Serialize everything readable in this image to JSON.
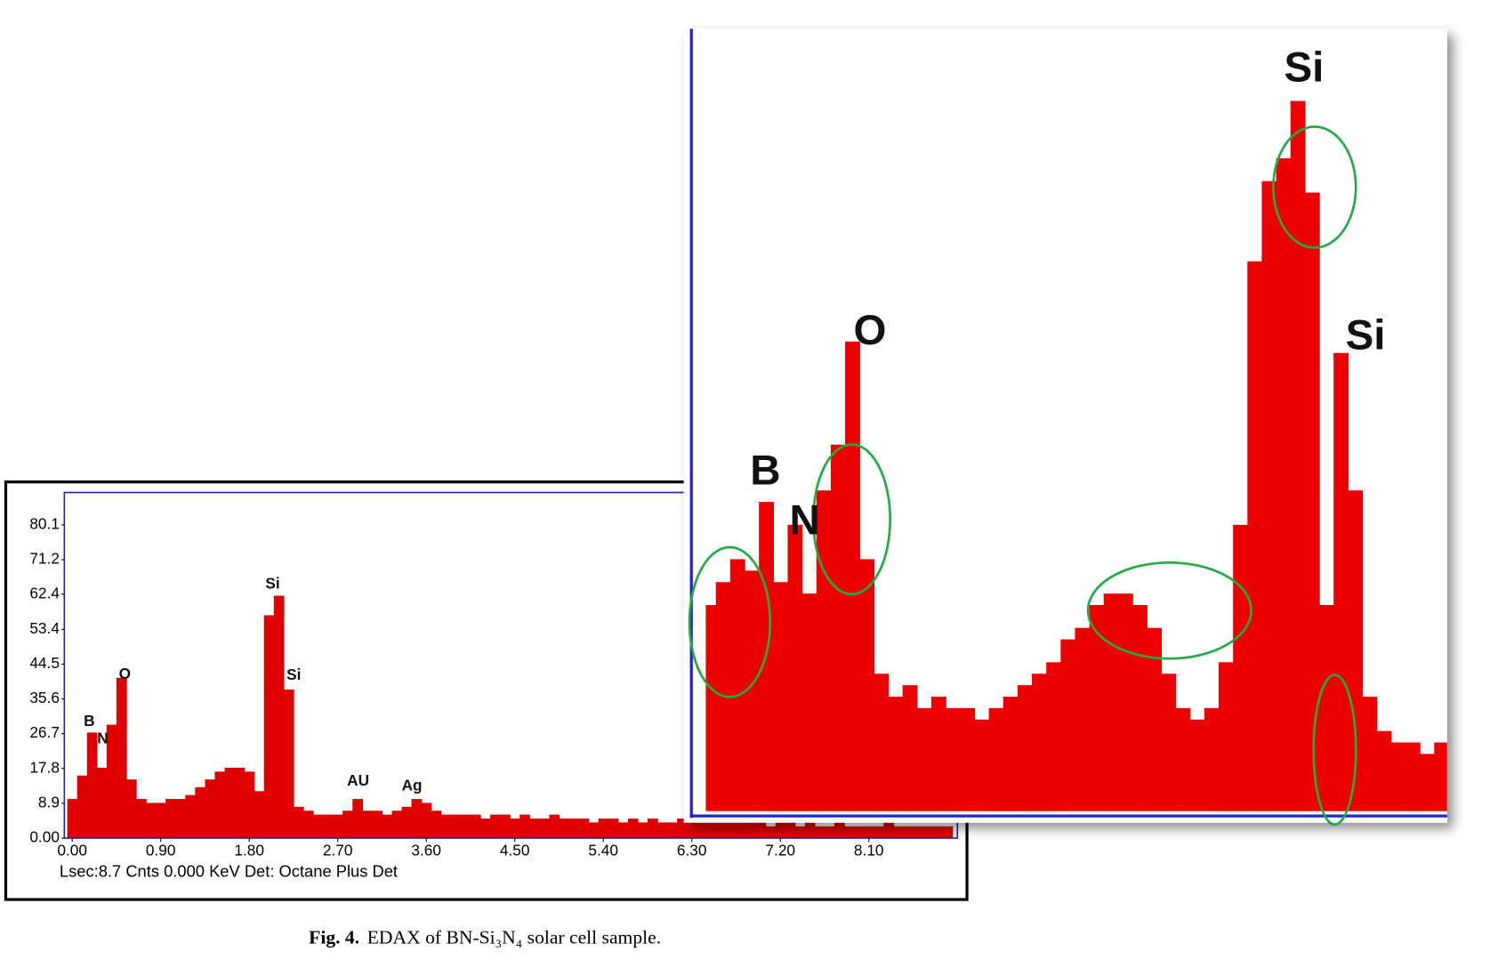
{
  "chart_data": [
    {
      "type": "bar",
      "footer": "Lsec:8.7 Cnts 0.000 KeV Det: Octane Plus  Det",
      "peak_labels": [
        "B",
        "N",
        "O",
        "Si",
        "Si",
        "AU",
        "Ag"
      ],
      "color": "#e00000",
      "x": [
        0,
        0.1,
        0.2,
        0.3,
        0.4,
        0.5,
        0.6,
        0.7,
        0.8,
        0.9,
        1,
        1.1,
        1.2,
        1.3,
        1.4,
        1.5,
        1.6,
        1.7,
        1.8,
        1.9,
        2,
        2.1,
        2.2,
        2.3,
        2.4,
        2.5,
        2.6,
        2.7,
        2.8,
        2.9,
        3,
        3.1,
        3.2,
        3.3,
        3.4,
        3.5,
        3.6,
        3.7,
        3.8,
        3.9,
        4,
        4.1,
        4.2,
        4.3,
        4.4,
        4.5,
        4.6,
        4.7,
        4.8,
        4.9,
        5,
        5.1,
        5.2,
        5.3,
        5.4,
        5.5,
        5.6,
        5.7,
        5.8,
        5.9,
        6,
        6.1,
        6.2,
        6.3,
        6.4,
        6.5,
        6.6,
        6.7,
        6.8,
        6.9,
        7,
        7.1,
        7.2,
        7.3,
        7.4,
        7.5,
        7.6,
        7.7,
        7.8,
        7.9,
        8,
        8.1,
        8.2,
        8.3,
        8.4,
        8.5,
        8.6,
        8.7,
        8.8,
        8.9
      ],
      "values": [
        10,
        16,
        27,
        18,
        29,
        41,
        15,
        10,
        9,
        9,
        10,
        10,
        11,
        13,
        15,
        17,
        18,
        18,
        17,
        12,
        57,
        62,
        38,
        8,
        7,
        6,
        6,
        6,
        7,
        10,
        7,
        7,
        6,
        7,
        8,
        10,
        9,
        7,
        6,
        6,
        6,
        6,
        5,
        6,
        6,
        5,
        6,
        5,
        5,
        6,
        5,
        5,
        5,
        4,
        5,
        5,
        4,
        5,
        4,
        5,
        4,
        4,
        5,
        4,
        4,
        4,
        4,
        4,
        4,
        4,
        4,
        3,
        4,
        4,
        3,
        4,
        3,
        3,
        4,
        3,
        3,
        3,
        3,
        4,
        3,
        3,
        3,
        3,
        3,
        3
      ],
      "xlim": [
        -0.08,
        9.0
      ],
      "ylim": [
        0,
        88.4
      ],
      "xticks": [
        {
          "value": 0,
          "label": "0.00"
        },
        {
          "value": 0.9,
          "label": "0.90"
        },
        {
          "value": 1.8,
          "label": "1.80"
        },
        {
          "value": 2.7,
          "label": "2.70"
        },
        {
          "value": 3.6,
          "label": "3.60"
        },
        {
          "value": 4.5,
          "label": "4.50"
        },
        {
          "value": 5.4,
          "label": "5.40"
        },
        {
          "value": 6.3,
          "label": "6.30"
        },
        {
          "value": 7.2,
          "label": "7.20"
        },
        {
          "value": 8.1,
          "label": "8.10"
        }
      ],
      "yticks": [
        {
          "value": 0,
          "label": "0.00"
        },
        8.9,
        17.8,
        26.7,
        35.6,
        44.5,
        53.4,
        62.4,
        71.2,
        80.1
      ]
    },
    {
      "type": "bar",
      "peak_labels": [
        "B",
        "N",
        "O",
        "Si",
        "Si"
      ],
      "color": "#ee0000",
      "x": [
        0,
        0.05,
        0.1,
        0.15,
        0.2,
        0.25,
        0.3,
        0.35,
        0.4,
        0.45,
        0.5,
        0.55,
        0.6,
        0.65,
        0.7,
        0.75,
        0.8,
        0.85,
        0.9,
        0.95,
        1,
        1.05,
        1.1,
        1.15,
        1.2,
        1.25,
        1.3,
        1.35,
        1.4,
        1.45,
        1.5,
        1.55,
        1.6,
        1.65,
        1.7,
        1.75,
        1.8,
        1.85,
        1.9,
        1.95,
        2,
        2.05,
        2.1,
        2.15,
        2.2,
        2.25,
        2.3,
        2.35,
        2.4,
        2.45,
        2.5,
        2.55
      ],
      "values": [
        18,
        20,
        22,
        21,
        27,
        20,
        25,
        19,
        28,
        32,
        41,
        22,
        12,
        10,
        11,
        9,
        10,
        9,
        9,
        8,
        9,
        10,
        11,
        12,
        13,
        15,
        16,
        18,
        19,
        19,
        18,
        16,
        12,
        9,
        8,
        9,
        13,
        25,
        48,
        55,
        57,
        62,
        54,
        18,
        40,
        28,
        10,
        7,
        6,
        6,
        5,
        6
      ],
      "xlim": [
        -0.01,
        2.57
      ],
      "ylim": [
        0,
        68.3
      ]
    }
  ],
  "caption": {
    "label": "Fig. 4.",
    "text": "EDAX of BN-Si₃N₄ solar cell sample."
  }
}
